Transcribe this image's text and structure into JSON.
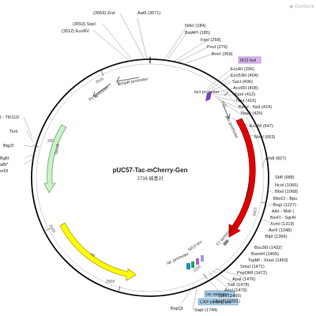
{
  "plasmid": {
    "name": "pUC57-Tac-mCherry-Gen",
    "size": "3736 碱基对"
  },
  "watermark": "◉ GenBank",
  "ticks": [
    "500",
    "1000",
    "1500",
    "2000",
    "2500",
    "3000",
    "3500"
  ],
  "features": {
    "ampr_promoter": "AmpR promoter",
    "pc_promoter": "Pc promoter",
    "genr": "GenR",
    "ori": "ori",
    "lac_promoter": "lac promoter",
    "m13_rev": "M13 rev",
    "t7_terminator": "T7 terminator",
    "mcherry": "mCherry",
    "tac_promoter": "tac promoter",
    "laci_promoter": "lacI promoter",
    "m13_fwd": "M13 fwd",
    "lac_operator": "lac operator",
    "cap_site": "CAP binding site"
  },
  "sites_top": [
    {
      "t": "(3669)  ZraI"
    },
    {
      "t": "AatII  (3671)"
    },
    {
      "t": "(3553)  SspI"
    },
    {
      "t": "(3512)  EcoRV"
    },
    {
      "t": "NdeI  (184)"
    },
    {
      "t": "BstAPI  (185)"
    },
    {
      "t": "FspI  (258)"
    },
    {
      "t": "PvuI  (279)"
    },
    {
      "t": "BmrI  (359)"
    }
  ],
  "sites_right": [
    {
      "t": "EcoRI  (396)"
    },
    {
      "t": "Eco53kI  (404)"
    },
    {
      "t": "SacI  (406)"
    },
    {
      "t": "Acc65I  (408)"
    },
    {
      "t": "KpnI  (412)"
    },
    {
      "t": "NruI  (416)"
    },
    {
      "t": "BsmI - NsiI  (424)"
    },
    {
      "t": "XbaI*  (425)"
    },
    {
      "t": "EcoNI  (547)"
    },
    {
      "t": "MscI  (663)"
    },
    {
      "t": "AhdI  (827)"
    },
    {
      "t": "SbfI  (988)"
    },
    {
      "t": "NcoI  (1066)"
    },
    {
      "t": "BbsI  (1068)"
    },
    {
      "t": "BbvCI - Bpu"
    },
    {
      "t": "BsgI  (1227)"
    },
    {
      "t": "AleI - MslI  ("
    },
    {
      "t": "BsrFI - SgrAI"
    },
    {
      "t": "XcmI  (1319)"
    },
    {
      "t": "AvrII  (1348)"
    },
    {
      "t": "BlpI  (1366)"
    },
    {
      "t": "Bsu36I  (1432)"
    },
    {
      "t": "BamHI  (1465)"
    },
    {
      "t": "TspMI - XmaI  (1469)"
    },
    {
      "t": "SmaI  (1471)"
    },
    {
      "t": "PspOMI  (1472)"
    },
    {
      "t": "ApaI  (1476)"
    },
    {
      "t": "SalI  (1478)"
    },
    {
      "t": "AccI  (1479)"
    },
    {
      "t": "SphI  (1499)"
    },
    {
      "t": "HindIII  (1501)"
    }
  ],
  "sites_left": [
    {
      "t": "I - Tth111I"
    },
    {
      "t": "TsoI"
    },
    {
      "t": "BtgZI"
    },
    {
      "t": "BglII"
    },
    {
      "t": "aBI*"
    },
    {
      "t": "srDI"
    }
  ],
  "sites_bottom": [
    {
      "t": "BspQI"
    },
    {
      "t": "SapI  (1744)"
    }
  ]
}
